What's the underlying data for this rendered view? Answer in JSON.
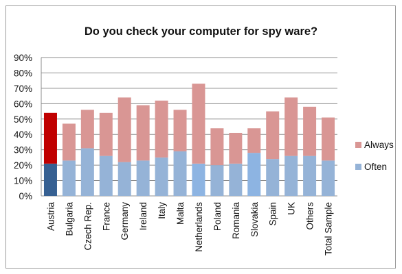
{
  "chart_data": {
    "type": "bar",
    "stacked": true,
    "title": "Do you check your computer for spy ware?",
    "xlabel": "",
    "ylabel": "",
    "ylim": [
      0,
      90
    ],
    "y_ticks": [
      "0%",
      "10%",
      "20%",
      "30%",
      "40%",
      "50%",
      "60%",
      "70%",
      "80%",
      "90%"
    ],
    "grid": true,
    "legend_position": "right",
    "categories": [
      "Austria",
      "Bulgaria",
      "Czech Rep.",
      "France",
      "Germany",
      "Ireland",
      "Italy",
      "Malta",
      "Netherlands",
      "Poland",
      "Romania",
      "Slovakia",
      "Spain",
      "UK",
      "Others",
      "Total Sample"
    ],
    "series": [
      {
        "name": "Often",
        "color": "#95b3d7",
        "values": [
          21,
          23,
          31,
          26,
          22,
          23,
          25,
          29,
          21,
          20,
          21,
          28,
          24,
          26,
          26,
          23
        ]
      },
      {
        "name": "Always",
        "color": "#d99694",
        "values": [
          33,
          24,
          25,
          28,
          42,
          36,
          37,
          27,
          52,
          24,
          20,
          16,
          31,
          38,
          32,
          28
        ]
      }
    ],
    "highlight_colors": {
      "Austria": {
        "Often": "#366092",
        "Always": "#c00000"
      },
      "Netherlands": {
        "Often": "#8db4e2",
        "Always": "#d99694"
      },
      "Slovakia": {
        "Often": "#8db4e2",
        "Always": "#d99694"
      }
    }
  }
}
